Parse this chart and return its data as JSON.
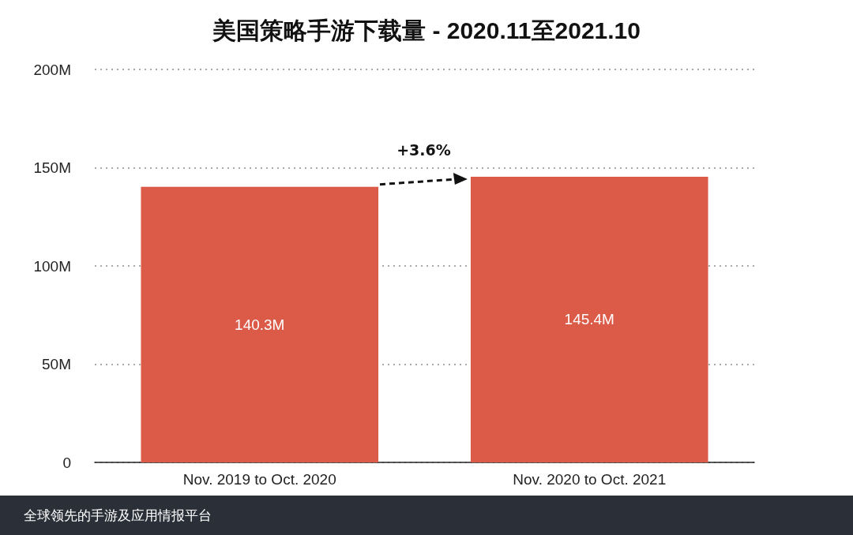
{
  "chart_data": {
    "type": "bar",
    "title": "美国策略手游下载量 - 2020.11至2021.10",
    "categories": [
      "Nov. 2019 to Oct. 2020",
      "Nov. 2020 to Oct. 2021"
    ],
    "values": [
      140.3,
      145.4
    ],
    "color": "#dc5a48",
    "value_labels": [
      "140.3M",
      "145.4M"
    ],
    "ylim": [
      0,
      200
    ],
    "yticks": [
      0,
      {
        "value": 50,
        "label": "50M"
      },
      {
        "value": 100,
        "label": "100M"
      },
      {
        "value": 150,
        "label": "150M"
      },
      {
        "value": 200,
        "label": "200M"
      }
    ],
    "grid": "y",
    "annotations": [
      "+3.6%",
      "全球领先的手游及应用情报平台"
    ]
  }
}
